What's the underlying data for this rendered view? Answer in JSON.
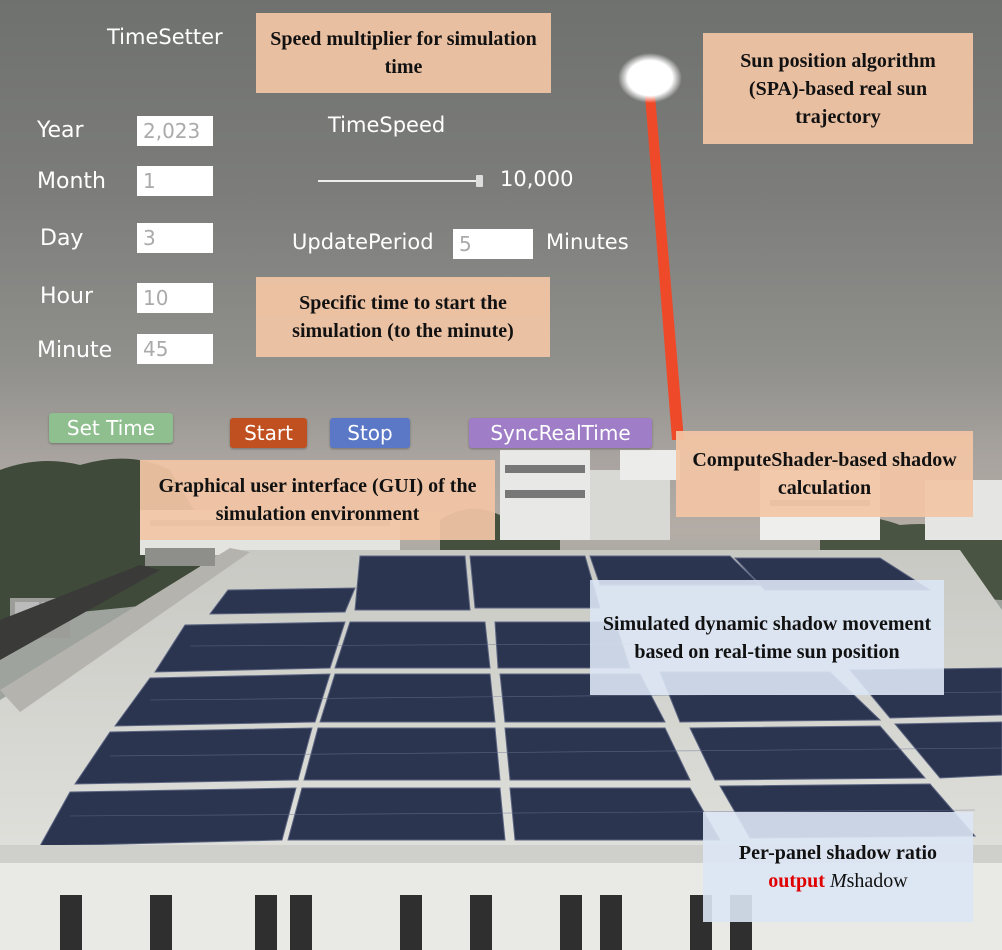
{
  "gui": {
    "title": "TimeSetter",
    "fields": [
      {
        "label": "Year",
        "value": "2,023"
      },
      {
        "label": "Month",
        "value": "1"
      },
      {
        "label": "Day",
        "value": "3"
      },
      {
        "label": "Hour",
        "value": "10"
      },
      {
        "label": "Minute",
        "value": "45"
      }
    ],
    "time_speed": {
      "label": "TimeSpeed",
      "value": "10,000"
    },
    "update_period": {
      "label": "UpdatePeriod",
      "value": "5",
      "unit": "Minutes"
    },
    "buttons": {
      "set_time": "Set Time",
      "start": "Start",
      "stop": "Stop",
      "sync": "SyncRealTime"
    },
    "colors": {
      "set_time": "#8fbf8f",
      "start": "#c0501f",
      "stop": "#5b78c6",
      "sync": "#9f7ec7"
    }
  },
  "annotations": {
    "speed": "Speed multiplier for simulation time",
    "sun": "Sun position algorithm (SPA)-based real sun trajectory",
    "start_time": "Specific time to start the simulation (to the minute)",
    "gui": "Graphical user interface (GUI) of the simulation environment",
    "compute": "ComputeShader-based shadow calculation",
    "shadow_move": "Simulated dynamic shadow movement based on real-time sun position",
    "output_pre": "Per-panel shadow ratio",
    "output_word": "output",
    "output_sym": "M",
    "output_sub": "shadow"
  }
}
